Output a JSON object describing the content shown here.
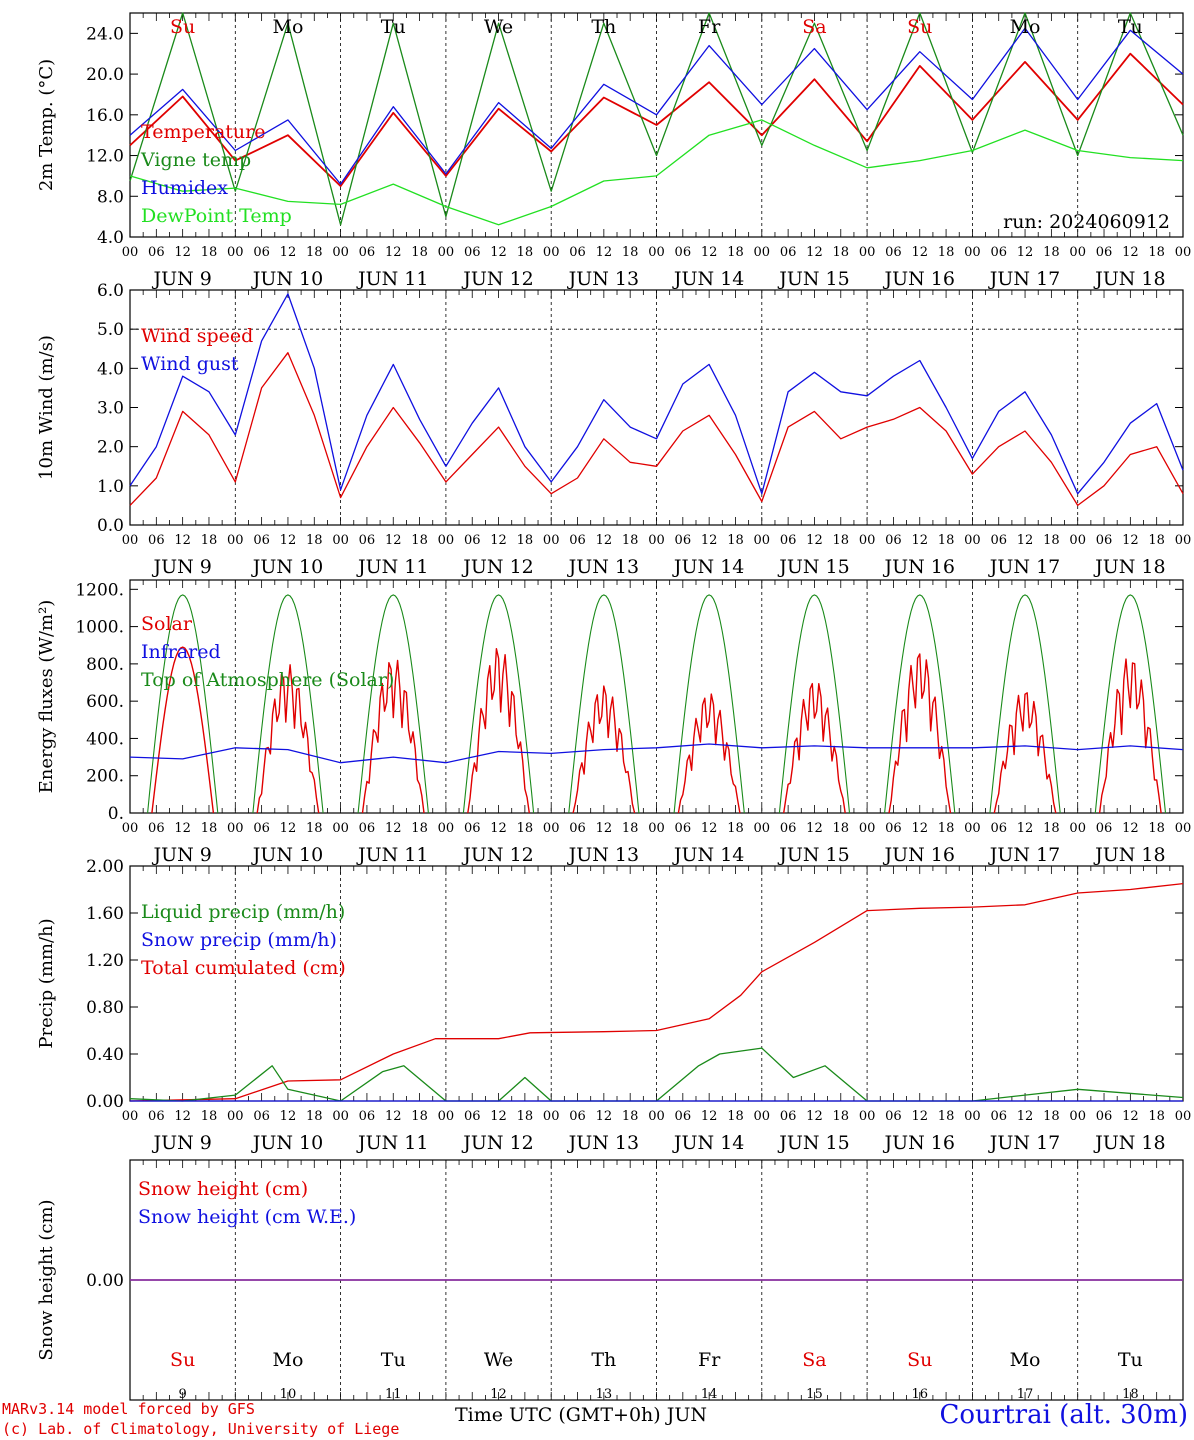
{
  "page": {
    "xtitle": "Time UTC (GMT+0h)",
    "month": "JUN",
    "station": "Courtrai (alt. 30m)",
    "credit_line1": "MARv3.14 model forced by GFS",
    "credit_line2": "(c) Lab. of Climatology, University of Liege",
    "run_label": "run: 2024060912"
  },
  "colors": {
    "red": "#e00000",
    "green": "#1a8a1a",
    "blue": "#1010e0",
    "lightgreen": "#22e022",
    "snow": "#8a30a0",
    "black": "#000000"
  },
  "days": {
    "labels": [
      "JUN  9",
      "JUN 10",
      "JUN 11",
      "JUN 12",
      "JUN 13",
      "JUN 14",
      "JUN 15",
      "JUN 16",
      "JUN 17",
      "JUN 18"
    ],
    "numbers": [
      "9",
      "10",
      "11",
      "12",
      "13",
      "14",
      "15",
      "16",
      "17",
      "18"
    ],
    "weekdays": [
      "Su",
      "Mo",
      "Tu",
      "We",
      "Th",
      "Fr",
      "Sa",
      "Su",
      "Mo",
      "Tu"
    ],
    "weekday_colors": [
      "red",
      "black",
      "black",
      "black",
      "black",
      "black",
      "red",
      "red",
      "black",
      "black"
    ],
    "hour_ticks": [
      "00",
      "06",
      "12",
      "18"
    ],
    "final_tick": "00"
  },
  "chart_data": [
    {
      "type": "line",
      "ylabel": "2m Temp. (°C)",
      "ylim": [
        4,
        26
      ],
      "yticks": [
        "4.0",
        "8.0",
        "12.0",
        "16.0",
        "20.0",
        "24.0"
      ],
      "legend": [
        "Temperature",
        "Vigne temp",
        "Humidex",
        "DewPoint Temp"
      ],
      "series": [
        {
          "name": "Temperature",
          "color": "red",
          "x": [
            0,
            0.5,
            1,
            1.5,
            2,
            2.5,
            3,
            3.5,
            4,
            4.5,
            5,
            5.5,
            6,
            6.5,
            7,
            7.5,
            8,
            8.5,
            9,
            9.5,
            10
          ],
          "values": [
            13.0,
            17.8,
            11.5,
            14.0,
            9.0,
            16.2,
            10.0,
            16.6,
            12.4,
            17.7,
            15.0,
            19.2,
            14.0,
            19.5,
            13.4,
            20.8,
            15.5,
            21.2,
            15.5,
            22.0,
            17.0
          ]
        },
        {
          "name": "Vigne temp",
          "color": "green",
          "x": [
            0,
            0.5,
            1,
            1.5,
            2,
            2.5,
            3,
            3.5,
            4,
            4.5,
            5,
            5.5,
            6,
            6.5,
            7,
            7.5,
            8,
            8.5,
            9,
            9.5,
            10
          ],
          "values": [
            9.5,
            26,
            8.5,
            25,
            5.2,
            25,
            6.0,
            25,
            8.5,
            25,
            12.0,
            26,
            13.0,
            25,
            12.5,
            26,
            12.3,
            26,
            12.0,
            26,
            14.0
          ]
        },
        {
          "name": "Humidex",
          "color": "blue",
          "x": [
            0,
            0.5,
            1,
            1.5,
            2,
            2.5,
            3,
            3.5,
            4,
            4.5,
            5,
            5.5,
            6,
            6.5,
            7,
            7.5,
            8,
            8.5,
            9,
            9.5,
            10
          ],
          "values": [
            14.0,
            18.5,
            12.5,
            15.5,
            9.2,
            16.8,
            10.2,
            17.2,
            12.7,
            19.0,
            16.0,
            22.8,
            17.0,
            22.5,
            16.5,
            22.2,
            17.5,
            24.5,
            17.5,
            24.3,
            20.0
          ]
        },
        {
          "name": "DewPoint Temp",
          "color": "lightgreen",
          "x": [
            0,
            0.5,
            1,
            1.5,
            2,
            2.5,
            3,
            3.5,
            4,
            4.5,
            5,
            5.5,
            6,
            6.5,
            7,
            7.5,
            8,
            8.5,
            9,
            9.5,
            10
          ],
          "values": [
            10.0,
            8.5,
            8.8,
            7.5,
            7.2,
            9.2,
            7.0,
            5.2,
            7.0,
            9.5,
            10.0,
            14.0,
            15.5,
            13.0,
            10.8,
            11.5,
            12.5,
            14.5,
            12.5,
            11.8,
            11.5
          ]
        }
      ]
    },
    {
      "type": "line",
      "ylabel": "10m Wind (m/s)",
      "ylim": [
        0,
        6
      ],
      "yticks": [
        "0.0",
        "1.0",
        "2.0",
        "3.0",
        "4.0",
        "5.0",
        "6.0"
      ],
      "reference_line": 5.0,
      "legend": [
        "Wind speed",
        "Wind gust"
      ],
      "series": [
        {
          "name": "Wind speed",
          "color": "red",
          "x": [
            0,
            0.25,
            0.5,
            0.75,
            1,
            1.25,
            1.5,
            1.75,
            2,
            2.25,
            2.5,
            2.75,
            3,
            3.25,
            3.5,
            3.75,
            4,
            4.25,
            4.5,
            4.75,
            5,
            5.25,
            5.5,
            5.75,
            6,
            6.25,
            6.5,
            6.75,
            7,
            7.25,
            7.5,
            7.75,
            8,
            8.25,
            8.5,
            8.75,
            9,
            9.25,
            9.5,
            9.75,
            10
          ],
          "values": [
            0.5,
            1.2,
            2.9,
            2.3,
            1.1,
            3.5,
            4.4,
            2.8,
            0.7,
            2.0,
            3.0,
            2.1,
            1.1,
            1.8,
            2.5,
            1.5,
            0.8,
            1.2,
            2.2,
            1.6,
            1.5,
            2.4,
            2.8,
            1.8,
            0.6,
            2.5,
            2.9,
            2.2,
            2.5,
            2.7,
            3.0,
            2.4,
            1.3,
            2.0,
            2.4,
            1.6,
            0.5,
            1.0,
            1.8,
            2.0,
            0.8
          ]
        },
        {
          "name": "Wind gust",
          "color": "blue",
          "x": [
            0,
            0.25,
            0.5,
            0.75,
            1,
            1.25,
            1.5,
            1.75,
            2,
            2.25,
            2.5,
            2.75,
            3,
            3.25,
            3.5,
            3.75,
            4,
            4.25,
            4.5,
            4.75,
            5,
            5.25,
            5.5,
            5.75,
            6,
            6.25,
            6.5,
            6.75,
            7,
            7.25,
            7.5,
            7.75,
            8,
            8.25,
            8.5,
            8.75,
            9,
            9.25,
            9.5,
            9.75,
            10
          ],
          "values": [
            1.0,
            2.0,
            3.8,
            3.4,
            2.3,
            4.7,
            5.9,
            4.0,
            0.9,
            2.8,
            4.1,
            2.7,
            1.5,
            2.6,
            3.5,
            2.0,
            1.1,
            2.0,
            3.2,
            2.5,
            2.2,
            3.6,
            4.1,
            2.8,
            0.8,
            3.4,
            3.9,
            3.4,
            3.3,
            3.8,
            4.2,
            3.0,
            1.7,
            2.9,
            3.4,
            2.3,
            0.8,
            1.6,
            2.6,
            3.1,
            1.4
          ]
        }
      ]
    },
    {
      "type": "line",
      "ylabel": "Energy fluxes (W/m²)",
      "ylim": [
        0,
        1250
      ],
      "yticks": [
        "0.",
        "200.",
        "400.",
        "600.",
        "800.",
        "1000.",
        "1200."
      ],
      "legend": [
        "Solar",
        "Infrared",
        "Top of Atmosphere (Solar)"
      ],
      "toa_peak": 1170,
      "solar_day_peaks": [
        890,
        800,
        840,
        900,
        690,
        650,
        720,
        880,
        670,
        850
      ],
      "series": [
        {
          "name": "Infrared",
          "color": "blue",
          "x": [
            0,
            0.5,
            1,
            1.5,
            2,
            2.5,
            3,
            3.5,
            4,
            4.5,
            5,
            5.5,
            6,
            6.5,
            7,
            7.5,
            8,
            8.5,
            9,
            9.5,
            10
          ],
          "values": [
            300,
            290,
            350,
            340,
            270,
            300,
            270,
            330,
            320,
            340,
            350,
            370,
            350,
            360,
            350,
            350,
            350,
            360,
            340,
            360,
            340
          ]
        }
      ]
    },
    {
      "type": "line",
      "ylabel": "Precip (mm/h)",
      "ylim": [
        0,
        2.0
      ],
      "yticks": [
        "0.00",
        "0.40",
        "0.80",
        "1.20",
        "1.60",
        "2.00"
      ],
      "legend": [
        "Liquid precip (mm/h)",
        "Snow precip (mm/h)",
        "Total cumulated (cm)"
      ],
      "series": [
        {
          "name": "Total cumulated (cm)",
          "color": "red",
          "x": [
            0,
            1,
            1.5,
            2,
            2.5,
            2.9,
            3.5,
            3.8,
            4.5,
            5,
            5.5,
            5.8,
            6,
            6.5,
            7,
            7.5,
            8,
            8.5,
            9,
            9.5,
            10
          ],
          "values": [
            0.0,
            0.02,
            0.17,
            0.18,
            0.4,
            0.53,
            0.53,
            0.58,
            0.59,
            0.6,
            0.7,
            0.9,
            1.1,
            1.35,
            1.62,
            1.64,
            1.65,
            1.67,
            1.77,
            1.8,
            1.85
          ]
        },
        {
          "name": "Liquid precip (mm/h)",
          "color": "green",
          "x": [
            0,
            0.5,
            1,
            1.35,
            1.5,
            2,
            2.4,
            2.6,
            3,
            3.5,
            3.75,
            4,
            5,
            5.4,
            5.6,
            6,
            6.3,
            6.6,
            7,
            8,
            8.5,
            9,
            10
          ],
          "values": [
            0.02,
            0.0,
            0.05,
            0.3,
            0.1,
            0.0,
            0.25,
            0.3,
            0.0,
            0.0,
            0.2,
            0.0,
            0.0,
            0.3,
            0.4,
            0.45,
            0.2,
            0.3,
            0.0,
            0.0,
            0.05,
            0.1,
            0.03
          ]
        },
        {
          "name": "Snow precip (mm/h)",
          "color": "blue",
          "x": [
            0,
            10
          ],
          "values": [
            0,
            0
          ]
        }
      ]
    },
    {
      "type": "line",
      "ylabel": "Snow height (cm)",
      "ylim": [
        -1,
        1
      ],
      "yticks": [
        "0.00"
      ],
      "legend": [
        "Snow height (cm)",
        "Snow height (cm W.E.)"
      ],
      "series": [
        {
          "name": "Snow height (cm)",
          "color": "red",
          "x": [
            0,
            10
          ],
          "values": [
            0,
            0
          ]
        },
        {
          "name": "Snow height (cm W.E.)",
          "color": "blue",
          "x": [
            0,
            10
          ],
          "values": [
            0,
            0
          ]
        }
      ]
    }
  ]
}
